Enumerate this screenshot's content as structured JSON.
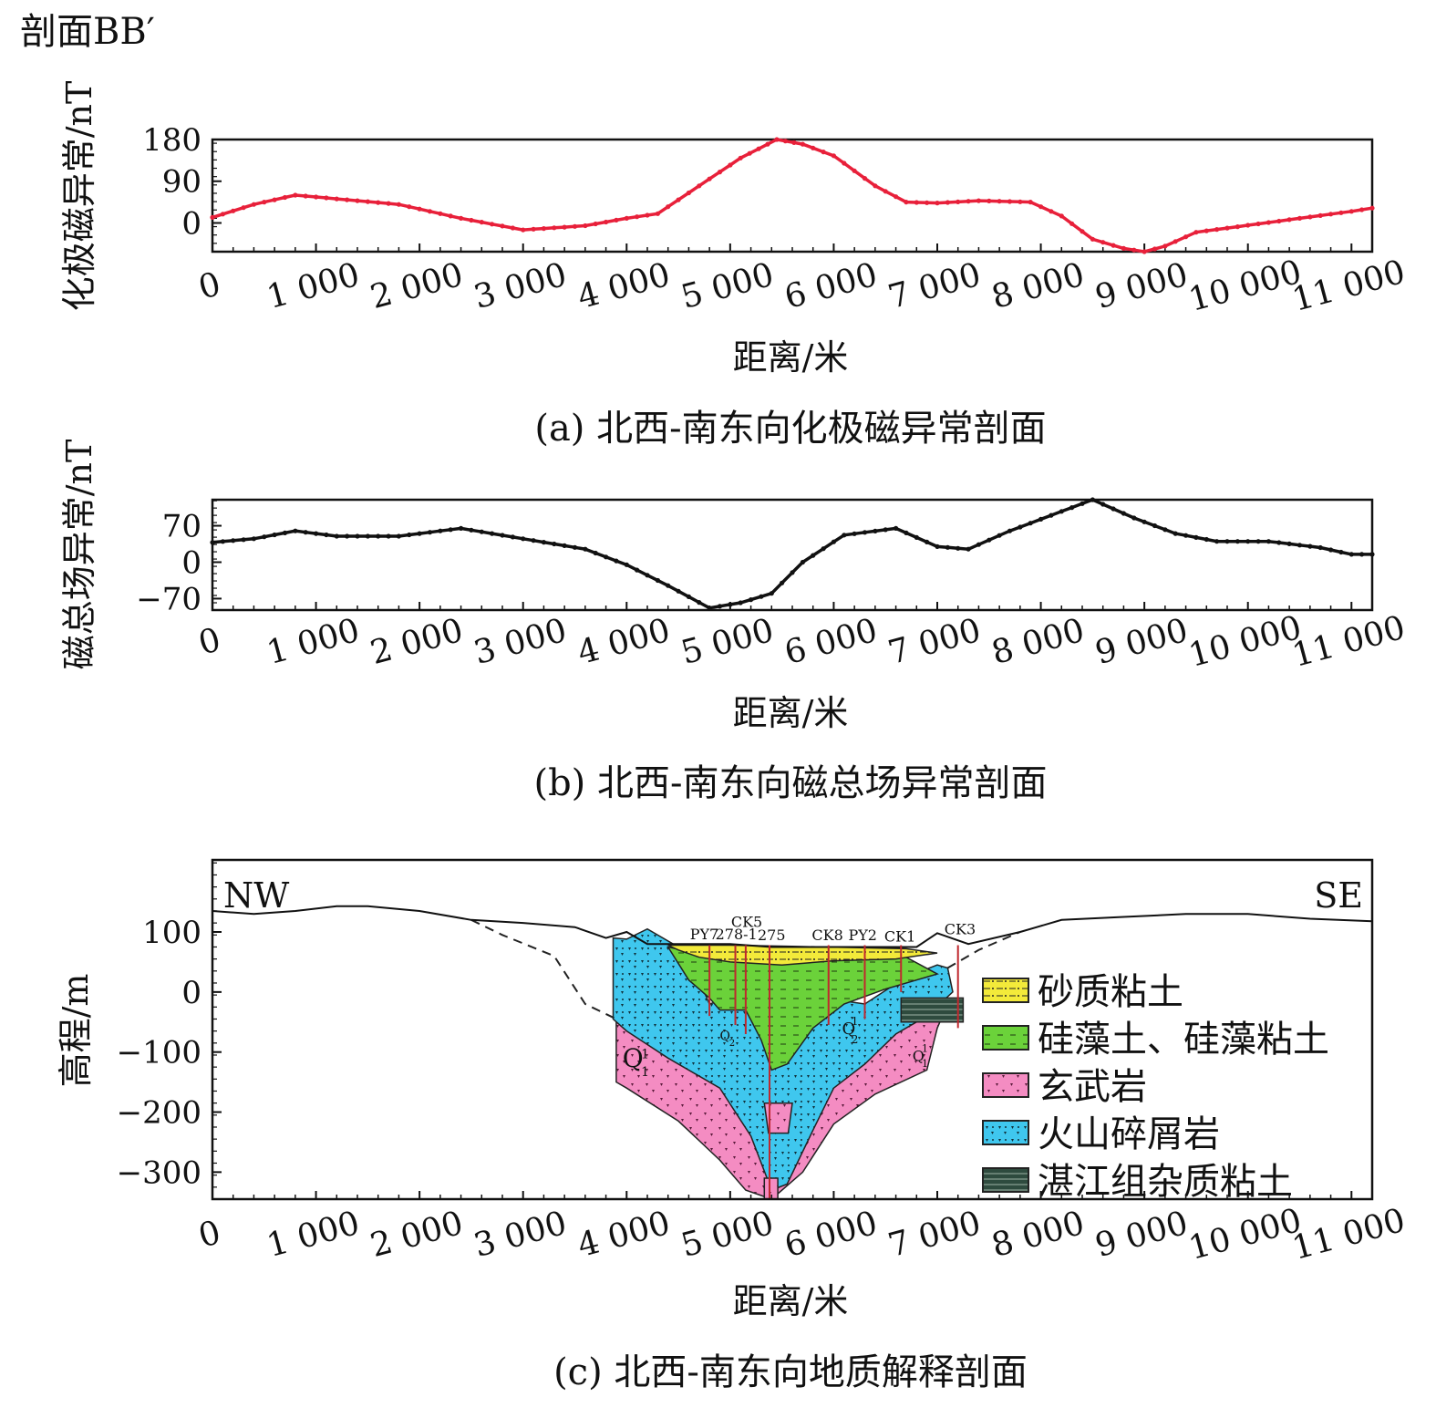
{
  "figure_title": "剖面BB′",
  "chart_data": [
    {
      "type": "line",
      "id": "a",
      "caption": "(a) 北西-南东向化极磁异常剖面",
      "xlabel": "距离/米",
      "ylabel": "化极磁异常/nT",
      "xlim": [
        0,
        11200
      ],
      "ylim": [
        -62,
        180
      ],
      "xticks": [
        0,
        1000,
        2000,
        3000,
        4000,
        5000,
        6000,
        7000,
        8000,
        9000,
        10000,
        11000
      ],
      "xtick_labels": [
        "0",
        "1 000",
        "2 000",
        "3 000",
        "4 000",
        "5 000",
        "6 000",
        "7 000",
        "8 000",
        "9 000",
        "10 000",
        "11 000"
      ],
      "yticks": [
        0,
        90,
        180
      ],
      "ytick_labels": [
        "0",
        "90",
        "180"
      ],
      "color": "#e8203a",
      "x": [
        0,
        400,
        800,
        1200,
        1800,
        2400,
        3000,
        3600,
        4000,
        4300,
        4700,
        5100,
        5450,
        5700,
        6000,
        6400,
        6700,
        7000,
        7400,
        7900,
        8200,
        8500,
        8800,
        9000,
        9200,
        9500,
        10000,
        10500,
        11000,
        11200
      ],
      "y": [
        12,
        40,
        60,
        52,
        40,
        10,
        -15,
        -6,
        10,
        20,
        80,
        140,
        180,
        170,
        145,
        80,
        45,
        43,
        48,
        45,
        15,
        -35,
        -55,
        -62,
        -50,
        -20,
        -5,
        10,
        25,
        32
      ]
    },
    {
      "type": "line",
      "id": "b",
      "caption": "(b) 北西-南东向磁总场异常剖面",
      "xlabel": "距离/米",
      "ylabel": "磁总场异常/nT",
      "xlim": [
        0,
        11200
      ],
      "ylim": [
        -92,
        120
      ],
      "xticks": [
        0,
        1000,
        2000,
        3000,
        4000,
        5000,
        6000,
        7000,
        8000,
        9000,
        10000,
        11000
      ],
      "xtick_labels": [
        "0",
        "1 000",
        "2 000",
        "3 000",
        "4 000",
        "5 000",
        "6 000",
        "7 000",
        "8 000",
        "9 000",
        "10 000",
        "11 000"
      ],
      "yticks": [
        -70,
        0,
        70
      ],
      "ytick_labels": [
        "−70",
        "0",
        "70"
      ],
      "color": "#111111",
      "x": [
        0,
        400,
        800,
        1200,
        1800,
        2400,
        3000,
        3600,
        4000,
        4400,
        4800,
        5100,
        5400,
        5700,
        6100,
        6600,
        7000,
        7300,
        7700,
        8100,
        8500,
        8900,
        9300,
        9700,
        10200,
        10700,
        11000,
        11200
      ],
      "y": [
        38,
        45,
        60,
        50,
        50,
        65,
        45,
        25,
        -5,
        -45,
        -88,
        -78,
        -60,
        0,
        52,
        65,
        30,
        25,
        60,
        90,
        120,
        85,
        55,
        40,
        40,
        28,
        15,
        15
      ]
    },
    {
      "type": "area",
      "id": "c",
      "caption": "(c) 北西-南东向地质解释剖面",
      "xlabel": "距离/米",
      "ylabel": "高程/m",
      "xlim": [
        0,
        11200
      ],
      "ylim": [
        -345,
        220
      ],
      "xticks": [
        0,
        1000,
        2000,
        3000,
        4000,
        5000,
        6000,
        7000,
        8000,
        9000,
        10000,
        11000
      ],
      "xtick_labels": [
        "0",
        "1 000",
        "2 000",
        "3 000",
        "4 000",
        "5 000",
        "6 000",
        "7 000",
        "8 000",
        "9 000",
        "10 000",
        "11 000"
      ],
      "yticks": [
        -300,
        -200,
        -100,
        0,
        100
      ],
      "ytick_labels": [
        "−300",
        "−200",
        "−100",
        "0",
        "100"
      ],
      "directions": [
        "NW",
        "SE"
      ],
      "borehole_labels": [
        "PY7",
        "278-1",
        "CK5",
        "275",
        "CK8",
        "PY2",
        "CK1",
        "CK3"
      ],
      "unit_labels": [
        "Q",
        "1",
        "1",
        "Q",
        "2",
        "Q",
        "1",
        "2",
        "Q",
        "1",
        "1"
      ],
      "legend": [
        {
          "label": "砂质粘土",
          "color": "#f3ea3a"
        },
        {
          "label": "硅藻土、硅藻粘土",
          "color": "#6bd23a"
        },
        {
          "label": "玄武岩",
          "color": "#f48cc2"
        },
        {
          "label": "火山碎屑岩",
          "color": "#3fc7ee"
        },
        {
          "label": "湛江组杂质粘土",
          "color": "#7a8a7e"
        }
      ],
      "surface": {
        "x": [
          0,
          400,
          800,
          1200,
          1500,
          2000,
          2500,
          3000,
          3500,
          3800,
          4000,
          4200,
          5000,
          5400,
          6000,
          6800,
          7000,
          7300,
          7800,
          8200,
          8800,
          9400,
          10000,
          10600,
          11200
        ],
        "y": [
          135,
          130,
          135,
          143,
          143,
          135,
          120,
          115,
          108,
          90,
          100,
          80,
          80,
          75,
          75,
          75,
          98,
          80,
          100,
          120,
          125,
          130,
          130,
          122,
          118
        ]
      }
    }
  ]
}
